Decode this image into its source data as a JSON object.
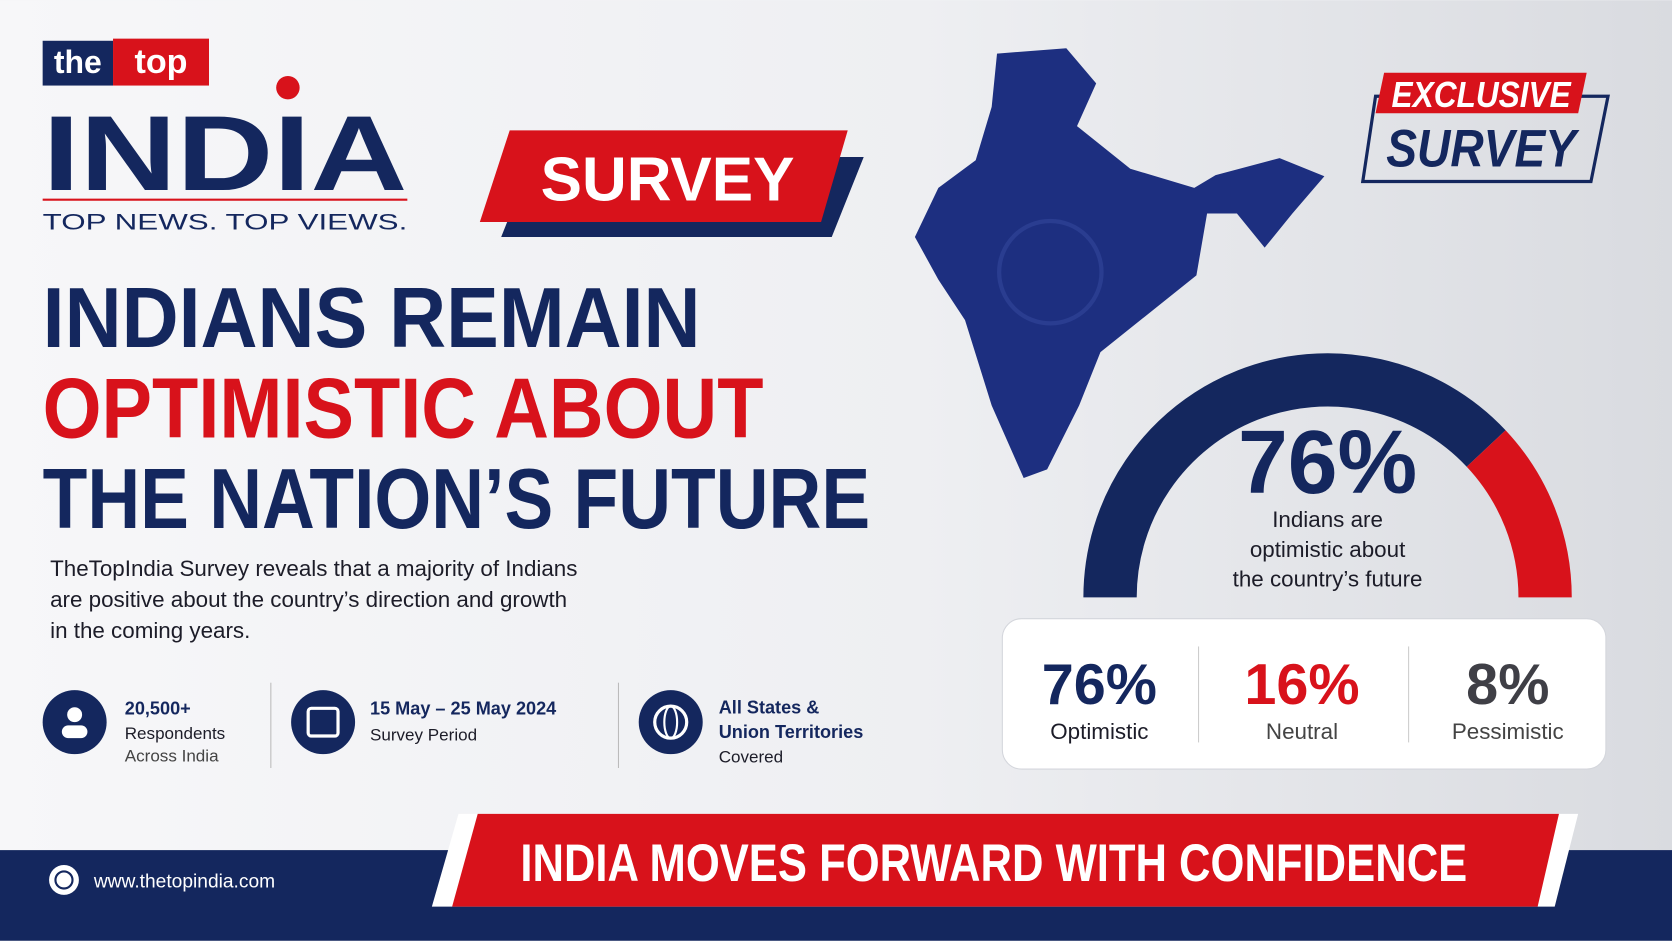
{
  "logo": {
    "the": "the",
    "top": "top",
    "brand": "INDIA",
    "tagline": "TOP NEWS. TOP VIEWS."
  },
  "badge": "SURVEY",
  "exclusive": {
    "line1": "EXCLUSIVE",
    "line2": "SURVEY"
  },
  "headline": [
    "INDIANS REMAIN",
    "OPTIMISTIC ABOUT",
    "THE NATION’S FUTURE"
  ],
  "description": [
    "TheTopIndia Survey reveals that a majority of Indians",
    "are positive about the country’s direction and growth",
    "in the coming years."
  ],
  "facts": [
    {
      "lines": [
        "20,500+",
        "Respondents",
        "Across India"
      ]
    },
    {
      "lines": [
        "15 May – 25 May 2024",
        "Survey Period"
      ]
    },
    {
      "lines": [
        "All States &",
        "Union Territories",
        "Covered"
      ]
    }
  ],
  "gauge_caption": [
    "Indians are",
    "optimistic about",
    "the country’s future"
  ],
  "stats": [
    {
      "value": 76,
      "label": "76%",
      "name": "Optimistic",
      "color": "#14275e"
    },
    {
      "value": 16,
      "label": "16%",
      "name": "Neutral",
      "color": "#d8121b"
    },
    {
      "value": 8,
      "label": "8%",
      "name": "Pessimistic",
      "color": "#3f3f46"
    }
  ],
  "footer": {
    "url": "www.thetopindia.com",
    "banner": "INDIA MOVES FORWARD WITH CONFIDENCE"
  }
}
